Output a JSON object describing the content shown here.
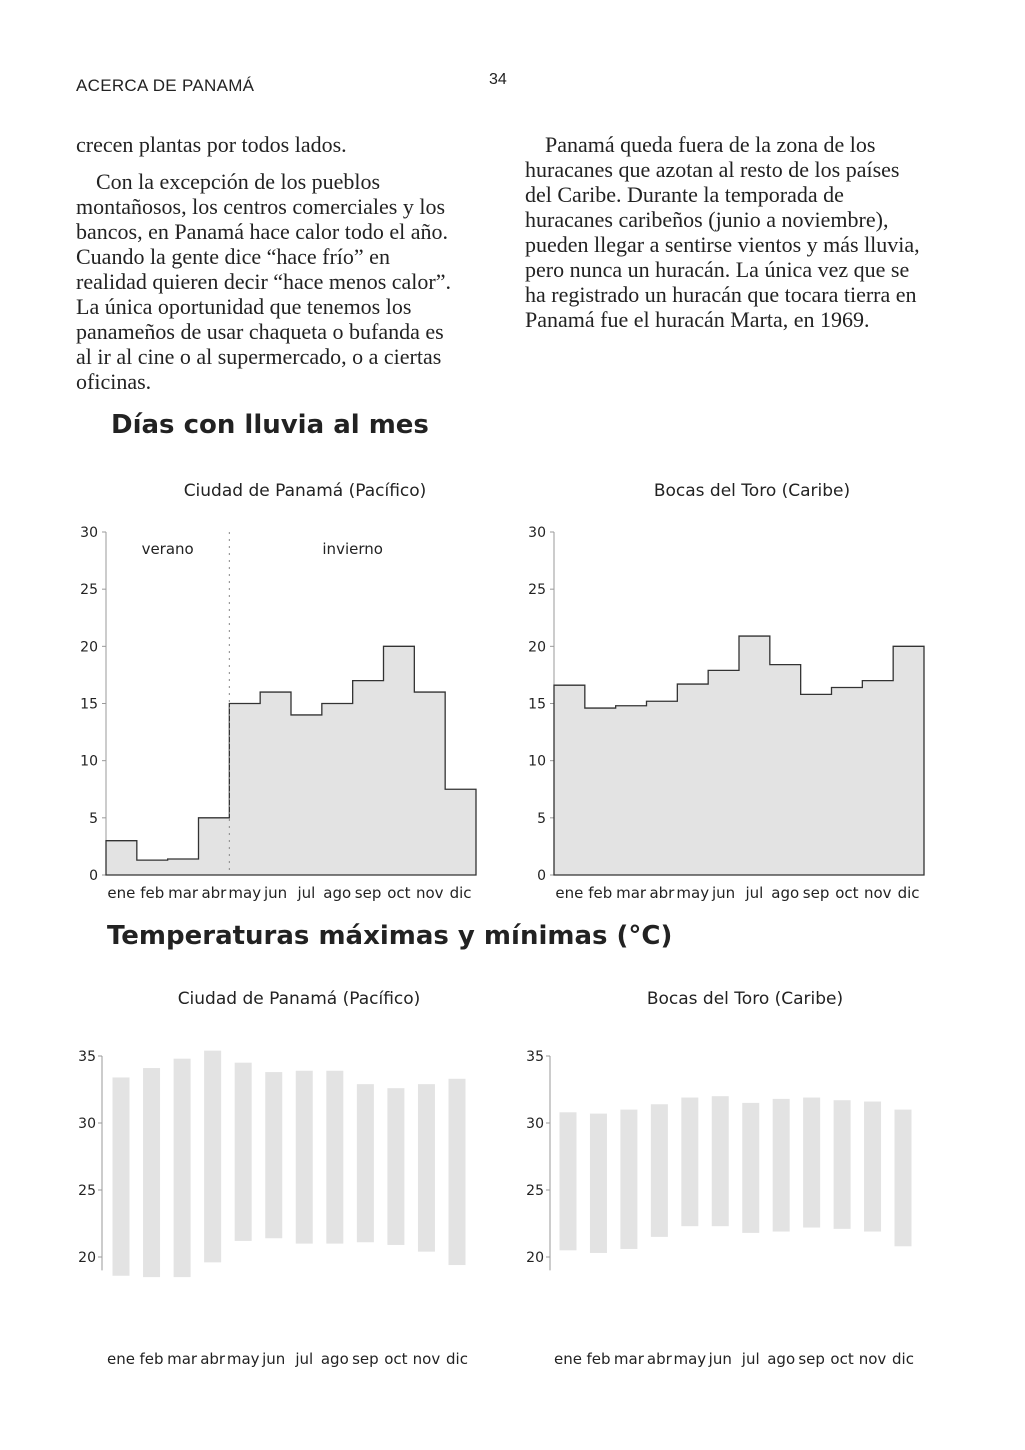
{
  "header": {
    "section": "ACERCA DE PANAMÁ",
    "page_number": "34"
  },
  "text": {
    "left_p1": "crecen plantas por todos lados.",
    "left_p2": "Con la excepción de los pueblos montañosos, los centros comerciales y los bancos, en Panamá hace calor todo el año. Cuando la gente dice “hace frío” en realidad quieren decir “hace menos calor”. La única oportunidad que tenemos los panameños de usar chaqueta o bufanda es al ir al cine o al supermercado, o a ciertas oficinas.",
    "right_p1": "Panamá queda fuera de la zona de los huracanes que azotan al resto de los países del Caribe. Durante la temporada de huracanes caribeños (junio a noviembre), pueden llegar a sentirse vientos y más lluvia, pero nunca un huracán. La única vez que se ha registrado un huracán que tocara tierra en Panamá fue el huracán Marta, en 1969."
  },
  "sections": {
    "rain_title": "Días con lluvia al mes",
    "temp_title": "Temperaturas máximas y mínimas (°C)"
  },
  "colors": {
    "fill": "#e3e3e3",
    "stroke": "#333333",
    "axis": "#999999",
    "text": "#222222"
  },
  "chart_data": [
    {
      "type": "area",
      "title": "Ciudad de Panamá (Pacífico)",
      "categories": [
        "ene",
        "feb",
        "mar",
        "abr",
        "may",
        "jun",
        "jul",
        "ago",
        "sep",
        "oct",
        "nov",
        "dic"
      ],
      "values": [
        3,
        1.3,
        1.4,
        5,
        15,
        16,
        14,
        15,
        17,
        20,
        16,
        7.5
      ],
      "ylim": [
        0,
        30
      ],
      "yticks": [
        0,
        5,
        10,
        15,
        20,
        25,
        30
      ],
      "annotations": [
        "verano",
        "invierno"
      ],
      "season_divider_after": "abr"
    },
    {
      "type": "area",
      "title": "Bocas del Toro (Caribe)",
      "categories": [
        "ene",
        "feb",
        "mar",
        "abr",
        "may",
        "jun",
        "jul",
        "ago",
        "sep",
        "oct",
        "nov",
        "dic"
      ],
      "values": [
        16.6,
        14.6,
        14.8,
        15.2,
        16.7,
        17.9,
        20.9,
        18.4,
        15.8,
        16.4,
        17,
        20
      ],
      "ylim": [
        0,
        30
      ],
      "yticks": [
        0,
        5,
        10,
        15,
        20,
        25,
        30
      ]
    },
    {
      "type": "bar",
      "title": "Ciudad de Panamá (Pacífico)",
      "categories": [
        "ene",
        "feb",
        "mar",
        "abr",
        "may",
        "jun",
        "jul",
        "ago",
        "sep",
        "oct",
        "nov",
        "dic"
      ],
      "max": [
        33.4,
        34.1,
        34.8,
        35.4,
        34.5,
        33.8,
        33.9,
        33.9,
        32.9,
        32.6,
        32.9,
        33.3
      ],
      "min": [
        18.6,
        18.5,
        18.5,
        19.6,
        21.2,
        21.4,
        21.0,
        21.0,
        21.1,
        20.9,
        20.4,
        19.4
      ],
      "ylim": [
        19,
        35
      ],
      "yticks": [
        20,
        25,
        30,
        35
      ]
    },
    {
      "type": "bar",
      "title": "Bocas del Toro (Caribe)",
      "categories": [
        "ene",
        "feb",
        "mar",
        "abr",
        "may",
        "jun",
        "jul",
        "ago",
        "sep",
        "oct",
        "nov",
        "dic"
      ],
      "max": [
        30.8,
        30.7,
        31.0,
        31.4,
        31.9,
        32.0,
        31.5,
        31.8,
        31.9,
        31.7,
        31.6,
        31.0
      ],
      "min": [
        20.5,
        20.3,
        20.6,
        21.5,
        22.3,
        22.3,
        21.8,
        21.9,
        22.2,
        22.1,
        21.9,
        20.8
      ],
      "ylim": [
        19,
        35
      ],
      "yticks": [
        20,
        25,
        30,
        35
      ]
    }
  ]
}
